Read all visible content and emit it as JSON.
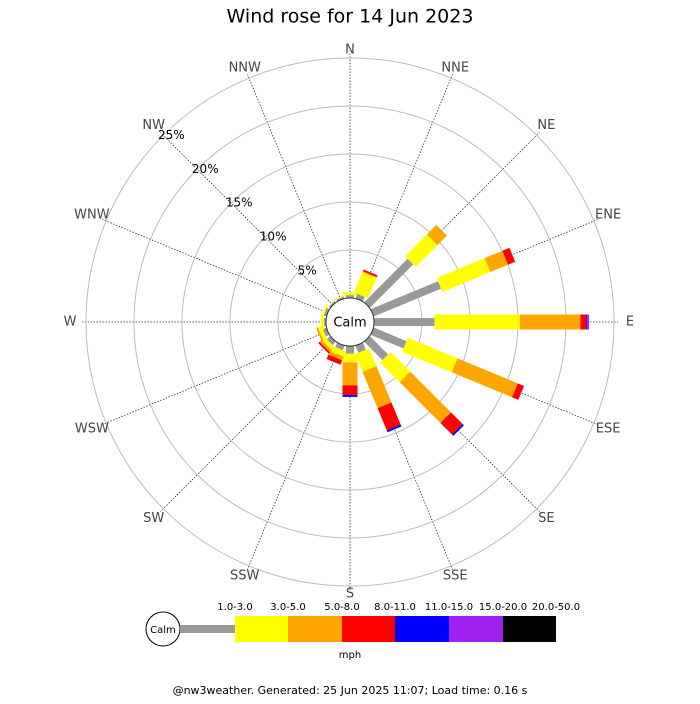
{
  "chart_data": {
    "type": "windrose",
    "title": "Wind rose for 14 Jun 2023",
    "calm_label": "Calm",
    "categories": [
      "N",
      "NNE",
      "NE",
      "ENE",
      "E",
      "ESE",
      "SE",
      "SSE",
      "S",
      "SSW",
      "SW",
      "WSW",
      "W",
      "WNW",
      "NW",
      "NNW"
    ],
    "series": [
      {
        "name": "1.0-3.0",
        "color": "#999999",
        "values": [
          0.3,
          0.5,
          6.4,
          7.6,
          6.3,
          3.7,
          2.7,
          0.8,
          0.8,
          0.5,
          0.5,
          0.4,
          0.2,
          0.3,
          0.2,
          0.2
        ]
      },
      {
        "name": "3.0-5.0",
        "color": "#ffff00",
        "values": [
          0.3,
          2.3,
          3.2,
          5.4,
          8.9,
          5.6,
          2.9,
          2.0,
          0.9,
          0.6,
          0.4,
          0.4,
          0.3,
          0.2,
          0,
          0.1
        ]
      },
      {
        "name": "5.0-8.0",
        "color": "#ffa500",
        "values": [
          0,
          0.1,
          1.4,
          2.0,
          6.3,
          6.8,
          6.0,
          4.1,
          2.4,
          0.4,
          0.3,
          0.2,
          0,
          0,
          0,
          0
        ]
      },
      {
        "name": "8.0-11.0",
        "color": "#ff0000",
        "values": [
          0,
          0.2,
          0,
          0.8,
          0.6,
          0.7,
          1.7,
          2.5,
          1.0,
          0.5,
          0.2,
          0,
          0,
          0,
          0,
          0
        ]
      },
      {
        "name": "11.0-15.0",
        "color": "#0000ff",
        "values": [
          0,
          0,
          0,
          0,
          0.1,
          0,
          0.2,
          0.2,
          0.2,
          0,
          0,
          0,
          0,
          0,
          0,
          0
        ]
      },
      {
        "name": "15.0-20.0",
        "color": "#a020f0",
        "values": [
          0,
          0,
          0,
          0,
          0.2,
          0,
          0,
          0,
          0,
          0,
          0,
          0,
          0,
          0,
          0,
          0
        ]
      },
      {
        "name": "20.0-50.0",
        "color": "#000000",
        "values": [
          0,
          0,
          0,
          0,
          0,
          0,
          0,
          0,
          0,
          0,
          0,
          0,
          0,
          0,
          0,
          0
        ]
      }
    ],
    "ylim": [
      0,
      25
    ],
    "yticks": [
      {
        "value": 5,
        "label": "5%"
      },
      {
        "value": 10,
        "label": "10%"
      },
      {
        "value": 15,
        "label": "15%"
      },
      {
        "value": 20,
        "label": "20%"
      },
      {
        "value": 25,
        "label": "25%"
      }
    ],
    "legend_unit": "mph",
    "footer": "@nw3weather. Generated: 25 Jun 2025 11:07; Load time: 0.16 s"
  }
}
